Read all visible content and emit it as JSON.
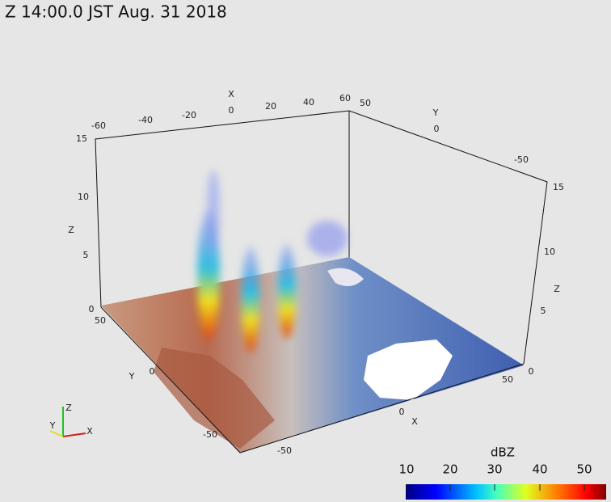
{
  "title": "Z   14:00.0 JST Aug. 31  2018",
  "axes": {
    "x_top": {
      "label": "X",
      "ticks": [
        "-60",
        "-40",
        "-20",
        "0",
        "20",
        "40",
        "60"
      ]
    },
    "y_top": {
      "label": "Y",
      "ticks": [
        "50",
        "0",
        "-50"
      ]
    },
    "z_left": {
      "label": "Z",
      "ticks": [
        "15",
        "10",
        "5",
        "0"
      ]
    },
    "z_right": {
      "label": "Z",
      "ticks": [
        "15",
        "10",
        "5",
        "0"
      ]
    },
    "y_bottom": {
      "label": "Y",
      "ticks": [
        "50",
        "0",
        "-50"
      ]
    },
    "x_bottom": {
      "label": "X",
      "ticks": [
        "-50",
        "0",
        "50"
      ]
    }
  },
  "orientation": {
    "x": "X",
    "y": "Y",
    "z": "Z"
  },
  "colorbar": {
    "title": "dBZ",
    "ticks": [
      "10",
      "20",
      "30",
      "40",
      "50"
    ]
  }
}
